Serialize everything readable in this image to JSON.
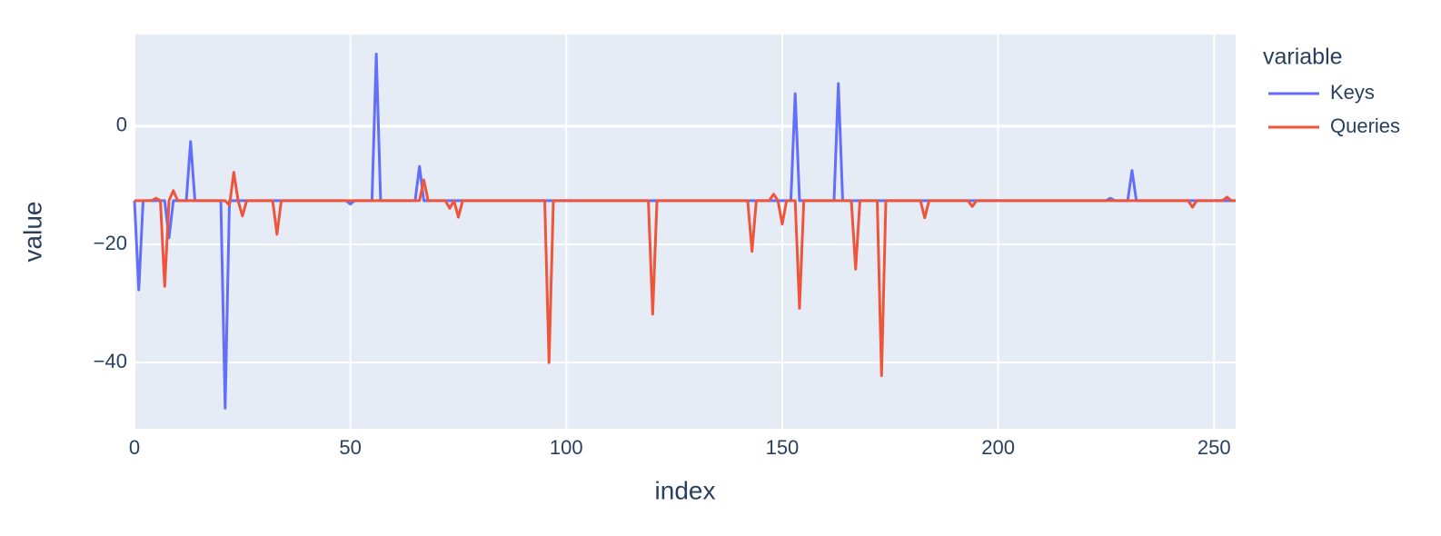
{
  "chart_data": {
    "type": "line",
    "x_label": "index",
    "y_label": "value",
    "legend_title": "variable",
    "xlim": [
      0,
      255
    ],
    "ylim": [
      -51.2,
      15.5
    ],
    "xticks": [
      0,
      50,
      100,
      150,
      200,
      250
    ],
    "yticks": [
      {
        "value": -40,
        "label": "−40"
      },
      {
        "value": -20,
        "label": "−20"
      },
      0
    ],
    "grid": true,
    "legend": "right",
    "x": [
      0,
      1,
      2,
      3,
      4,
      5,
      6,
      7,
      8,
      9,
      10,
      11,
      12,
      13,
      14,
      15,
      16,
      17,
      18,
      19,
      20,
      21,
      22,
      23,
      24,
      25,
      26,
      27,
      28,
      29,
      30,
      31,
      32,
      33,
      34,
      35,
      36,
      37,
      38,
      39,
      40,
      41,
      42,
      43,
      44,
      45,
      46,
      47,
      48,
      49,
      50,
      51,
      52,
      53,
      54,
      55,
      56,
      57,
      58,
      59,
      60,
      61,
      62,
      63,
      64,
      65,
      66,
      67,
      68,
      69,
      70,
      71,
      72,
      73,
      74,
      75,
      76,
      77,
      78,
      79,
      80,
      81,
      82,
      83,
      84,
      85,
      86,
      87,
      88,
      89,
      90,
      91,
      92,
      93,
      94,
      95,
      96,
      97,
      98,
      99,
      100,
      101,
      102,
      103,
      104,
      105,
      106,
      107,
      108,
      109,
      110,
      111,
      112,
      113,
      114,
      115,
      116,
      117,
      118,
      119,
      120,
      121,
      122,
      123,
      124,
      125,
      126,
      127,
      128,
      129,
      130,
      131,
      132,
      133,
      134,
      135,
      136,
      137,
      138,
      139,
      140,
      141,
      142,
      143,
      144,
      145,
      146,
      147,
      148,
      149,
      150,
      151,
      152,
      153,
      154,
      155,
      156,
      157,
      158,
      159,
      160,
      161,
      162,
      163,
      164,
      165,
      166,
      167,
      168,
      169,
      170,
      171,
      172,
      173,
      174,
      175,
      176,
      177,
      178,
      179,
      180,
      181,
      182,
      183,
      184,
      185,
      186,
      187,
      188,
      189,
      190,
      191,
      192,
      193,
      194,
      195,
      196,
      197,
      198,
      199,
      200,
      201,
      202,
      203,
      204,
      205,
      206,
      207,
      208,
      209,
      210,
      211,
      212,
      213,
      214,
      215,
      216,
      217,
      218,
      219,
      220,
      221,
      222,
      223,
      224,
      225,
      226,
      227,
      228,
      229,
      230,
      231,
      232,
      233,
      234,
      235,
      236,
      237,
      238,
      239,
      240,
      241,
      242,
      243,
      244,
      245,
      246,
      247,
      248,
      249,
      250,
      251,
      252,
      253,
      254,
      255
    ],
    "series": [
      {
        "name": "Keys",
        "color": "#636efa",
        "values": [
          -12.6,
          -27.7,
          -12.6,
          -12.6,
          -12.6,
          -12.6,
          -12.6,
          -12.6,
          -18.9,
          -12.6,
          -12.6,
          -12.6,
          -12.6,
          -2.6,
          -12.6,
          -12.6,
          -12.6,
          -12.6,
          -12.6,
          -12.6,
          -12.6,
          -47.7,
          -12.6,
          -12.6,
          -12.6,
          -12.6,
          -12.6,
          -12.6,
          -12.6,
          -12.6,
          -12.6,
          -12.6,
          -12.6,
          -12.6,
          -12.6,
          -12.6,
          -12.6,
          -12.6,
          -12.6,
          -12.6,
          -12.6,
          -12.6,
          -12.6,
          -12.6,
          -12.6,
          -12.6,
          -12.6,
          -12.6,
          -12.6,
          -12.6,
          -13.2,
          -12.6,
          -12.6,
          -12.6,
          -12.6,
          -12.6,
          12.2,
          -12.6,
          -12.6,
          -12.6,
          -12.6,
          -12.6,
          -12.6,
          -12.6,
          -12.6,
          -12.6,
          -6.8,
          -12.6,
          -12.6,
          -12.6,
          -12.6,
          -12.6,
          -12.6,
          -12.6,
          -12.6,
          -12.6,
          -12.6,
          -12.6,
          -12.6,
          -12.6,
          -12.6,
          -12.6,
          -12.6,
          -12.6,
          -12.6,
          -12.6,
          -12.6,
          -12.6,
          -12.6,
          -12.6,
          -12.6,
          -12.6,
          -12.6,
          -12.6,
          -12.6,
          -12.6,
          -12.6,
          -12.6,
          -12.6,
          -12.6,
          -12.6,
          -12.6,
          -12.6,
          -12.6,
          -12.6,
          -12.6,
          -12.6,
          -12.6,
          -12.6,
          -12.6,
          -12.6,
          -12.6,
          -12.6,
          -12.6,
          -12.6,
          -12.6,
          -12.6,
          -12.6,
          -12.6,
          -12.6,
          -12.6,
          -12.6,
          -12.6,
          -12.6,
          -12.6,
          -12.6,
          -12.6,
          -12.6,
          -12.6,
          -12.6,
          -12.6,
          -12.6,
          -12.6,
          -12.6,
          -12.6,
          -12.6,
          -12.6,
          -12.6,
          -12.6,
          -12.6,
          -12.6,
          -12.6,
          -12.6,
          -12.6,
          -12.6,
          -12.6,
          -12.6,
          -12.6,
          -12.6,
          -12.6,
          -12.6,
          -12.6,
          -12.6,
          5.5,
          -12.6,
          -12.6,
          -12.6,
          -12.6,
          -12.6,
          -12.6,
          -12.6,
          -12.6,
          -12.6,
          7.2,
          -12.6,
          -12.6,
          -12.6,
          -12.6,
          -12.6,
          -12.6,
          -12.6,
          -12.6,
          -12.6,
          -12.6,
          -12.6,
          -12.6,
          -12.6,
          -12.6,
          -12.6,
          -12.6,
          -12.6,
          -12.6,
          -12.6,
          -12.6,
          -12.6,
          -12.6,
          -12.6,
          -12.6,
          -12.6,
          -12.6,
          -12.6,
          -12.6,
          -12.6,
          -12.6,
          -12.6,
          -12.6,
          -12.6,
          -12.6,
          -12.6,
          -12.6,
          -12.6,
          -12.6,
          -12.6,
          -12.6,
          -12.6,
          -12.6,
          -12.6,
          -12.6,
          -12.6,
          -12.6,
          -12.6,
          -12.6,
          -12.6,
          -12.6,
          -12.6,
          -12.6,
          -12.6,
          -12.6,
          -12.6,
          -12.6,
          -12.6,
          -12.6,
          -12.6,
          -12.6,
          -12.6,
          -12.6,
          -12.2,
          -12.6,
          -12.6,
          -12.6,
          -12.6,
          -7.5,
          -12.6,
          -12.6,
          -12.6,
          -12.6,
          -12.6,
          -12.6,
          -12.6,
          -12.6,
          -12.6,
          -12.6,
          -12.6,
          -12.6,
          -12.6,
          -12.6,
          -12.6,
          -12.6,
          -12.6,
          -12.6,
          -12.6,
          -12.6,
          -12.6,
          -12.6,
          -12.6,
          -12.6
        ]
      },
      {
        "name": "Queries",
        "color": "#ef553b",
        "values": [
          -12.6,
          -12.6,
          -12.6,
          -12.6,
          -12.6,
          -12.2,
          -12.6,
          -27.1,
          -12.6,
          -10.9,
          -12.6,
          -12.6,
          -12.6,
          -12.6,
          -12.6,
          -12.6,
          -12.6,
          -12.6,
          -12.6,
          -12.6,
          -12.6,
          -12.6,
          -13.4,
          -7.8,
          -12.6,
          -15.2,
          -12.6,
          -12.6,
          -12.6,
          -12.6,
          -12.6,
          -12.6,
          -12.6,
          -18.3,
          -12.6,
          -12.6,
          -12.6,
          -12.6,
          -12.6,
          -12.6,
          -12.6,
          -12.6,
          -12.6,
          -12.6,
          -12.6,
          -12.6,
          -12.6,
          -12.6,
          -12.6,
          -12.6,
          -12.6,
          -12.6,
          -12.6,
          -12.6,
          -12.6,
          -12.6,
          -12.6,
          -12.6,
          -12.6,
          -12.6,
          -12.6,
          -12.6,
          -12.6,
          -12.6,
          -12.6,
          -12.6,
          -12.6,
          -9.1,
          -12.6,
          -12.6,
          -12.6,
          -12.6,
          -12.6,
          -13.9,
          -12.6,
          -15.4,
          -12.6,
          -12.6,
          -12.6,
          -12.6,
          -12.6,
          -12.6,
          -12.6,
          -12.6,
          -12.6,
          -12.6,
          -12.6,
          -12.6,
          -12.6,
          -12.6,
          -12.6,
          -12.6,
          -12.6,
          -12.6,
          -12.6,
          -12.6,
          -40,
          -12.6,
          -12.6,
          -12.6,
          -12.6,
          -12.6,
          -12.6,
          -12.6,
          -12.6,
          -12.6,
          -12.6,
          -12.6,
          -12.6,
          -12.6,
          -12.6,
          -12.6,
          -12.6,
          -12.6,
          -12.6,
          -12.6,
          -12.6,
          -12.6,
          -12.6,
          -12.6,
          -31.8,
          -12.6,
          -12.6,
          -12.6,
          -12.6,
          -12.6,
          -12.6,
          -12.6,
          -12.6,
          -12.6,
          -12.6,
          -12.6,
          -12.6,
          -12.6,
          -12.6,
          -12.6,
          -12.6,
          -12.6,
          -12.6,
          -12.6,
          -12.6,
          -12.6,
          -12.6,
          -21.2,
          -12.6,
          -12.6,
          -12.6,
          -12.6,
          -11.5,
          -12.6,
          -16.6,
          -12.6,
          -12.6,
          -12.6,
          -30.8,
          -12.6,
          -12.6,
          -12.6,
          -12.6,
          -12.6,
          -12.6,
          -12.6,
          -12.6,
          -12.6,
          -12.6,
          -12.6,
          -12.6,
          -24.2,
          -12.6,
          -12.6,
          -12.6,
          -12.6,
          -12.6,
          -42.2,
          -12.6,
          -12.6,
          -12.6,
          -12.6,
          -12.6,
          -12.6,
          -12.6,
          -12.6,
          -12.6,
          -15.5,
          -12.6,
          -12.6,
          -12.6,
          -12.6,
          -12.6,
          -12.6,
          -12.6,
          -12.6,
          -12.6,
          -12.6,
          -13.6,
          -12.6,
          -12.6,
          -12.6,
          -12.6,
          -12.6,
          -12.6,
          -12.6,
          -12.6,
          -12.6,
          -12.6,
          -12.6,
          -12.6,
          -12.6,
          -12.6,
          -12.6,
          -12.6,
          -12.6,
          -12.6,
          -12.6,
          -12.6,
          -12.6,
          -12.6,
          -12.6,
          -12.6,
          -12.6,
          -12.6,
          -12.6,
          -12.6,
          -12.6,
          -12.6,
          -12.6,
          -12.6,
          -12.6,
          -12.6,
          -12.6,
          -12.6,
          -12.6,
          -12.6,
          -12.6,
          -12.6,
          -12.6,
          -12.6,
          -12.6,
          -12.6,
          -12.6,
          -12.6,
          -12.6,
          -12.6,
          -12.6,
          -12.6,
          -13.7,
          -12.6,
          -12.6,
          -12.6,
          -12.6,
          -12.6,
          -12.6,
          -12.6,
          -12,
          -12.6,
          -12.6
        ]
      }
    ]
  }
}
